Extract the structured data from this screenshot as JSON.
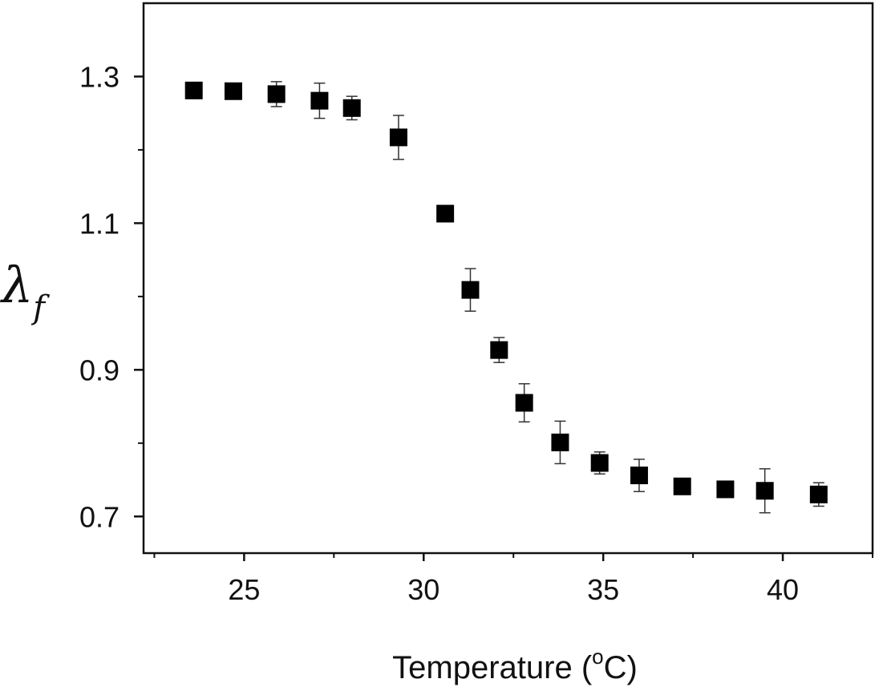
{
  "chart_data": {
    "type": "scatter",
    "title": "",
    "xlabel": "Temperature (°C)",
    "xlabel_parts": {
      "before": "Temperature (",
      "sup": "o",
      "after": "C)"
    },
    "ylabel_parts": {
      "main": "λ",
      "sub": "f"
    },
    "xlim": [
      22.2,
      42.5
    ],
    "ylim": [
      0.65,
      1.4
    ],
    "xticks": [
      25,
      30,
      35,
      40
    ],
    "xtick_labels": [
      "25",
      "30",
      "35",
      "40"
    ],
    "x_minor_ticks": [
      22.5,
      27.5,
      32.5,
      37.5,
      42.5
    ],
    "yticks": [
      0.7,
      0.9,
      1.1,
      1.3
    ],
    "ytick_labels": [
      "0.7",
      "0.9",
      "1.1",
      "1.3"
    ],
    "y_minor_ticks": [
      0.8,
      1.0,
      1.2
    ],
    "grid": false,
    "legend": "none",
    "marker": "filled-square",
    "color": "#000000",
    "series": [
      {
        "x": [
          23.6,
          24.7,
          25.9,
          27.1,
          28.0,
          29.3,
          30.6,
          31.3,
          32.1,
          32.8,
          33.8,
          34.9,
          36.0,
          37.2,
          38.4,
          39.5,
          41.0
        ],
        "y": [
          1.281,
          1.28,
          1.276,
          1.267,
          1.257,
          1.217,
          1.113,
          1.009,
          0.927,
          0.855,
          0.801,
          0.773,
          0.756,
          0.741,
          0.737,
          0.735,
          0.73
        ],
        "err": [
          0.005,
          0.004,
          0.017,
          0.024,
          0.016,
          0.03,
          0.004,
          0.029,
          0.017,
          0.026,
          0.029,
          0.015,
          0.022,
          0.004,
          0.004,
          0.03,
          0.016
        ]
      }
    ]
  }
}
